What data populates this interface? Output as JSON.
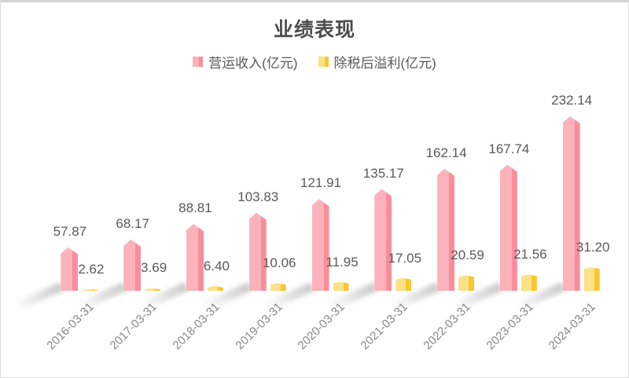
{
  "chart_data": {
    "type": "bar",
    "title": "业绩表现",
    "categories": [
      "2016-03-31",
      "2017-03-31",
      "2018-03-31",
      "2019-03-31",
      "2020-03-31",
      "2021-03-31",
      "2022-03-31",
      "2023-03-31",
      "2024-03-31"
    ],
    "series": [
      {
        "name": "营运收入(亿元)",
        "color_light": "#fbb2bb",
        "color_dark": "#f88e9c",
        "values": [
          57.87,
          68.17,
          88.81,
          103.83,
          121.91,
          135.17,
          162.14,
          167.74,
          232.14
        ]
      },
      {
        "name": "除税后溢利(亿元)",
        "color_light": "#fce186",
        "color_dark": "#fac62f",
        "values": [
          2.62,
          3.69,
          6.4,
          10.06,
          11.95,
          17.05,
          20.59,
          21.56,
          31.2
        ]
      }
    ],
    "ylim": [
      0,
      240
    ],
    "grid": false,
    "legend_position": "top",
    "value_label_color": "#595959",
    "axis_label_color": "#878787",
    "value_decimals": 2
  }
}
